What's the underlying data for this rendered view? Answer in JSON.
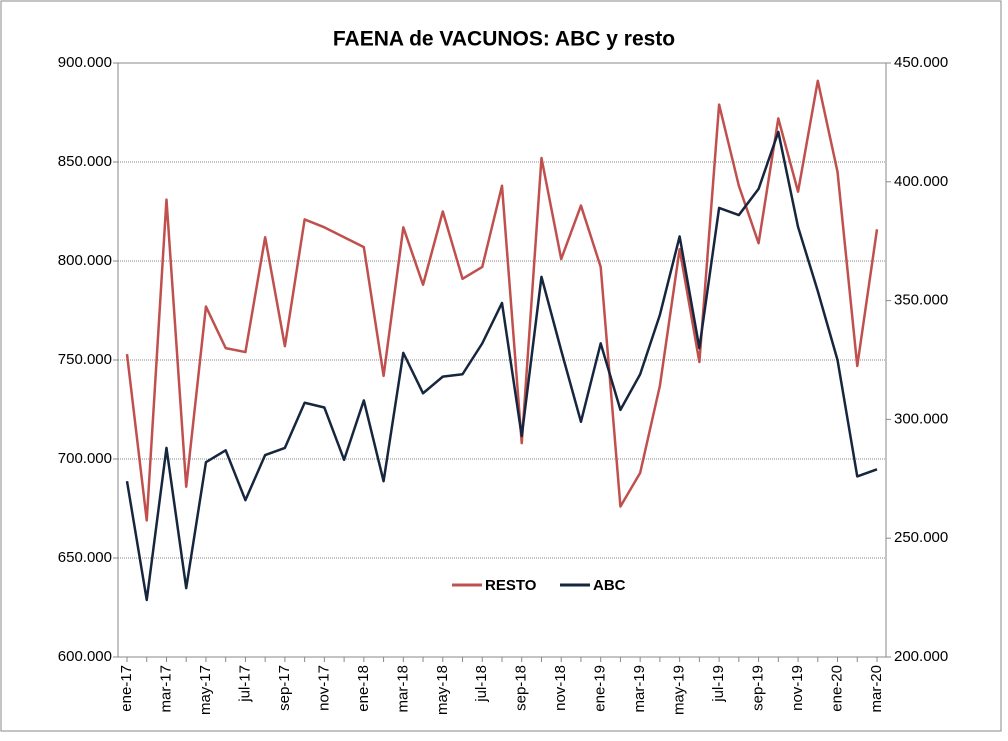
{
  "chart_data": {
    "type": "line",
    "title": "FAENA de VACUNOS: ABC y resto",
    "categories": [
      "ene-17",
      null,
      "mar-17",
      null,
      "may-17",
      null,
      "jul-17",
      null,
      "sep-17",
      null,
      "nov-17",
      null,
      "ene-18",
      null,
      "mar-18",
      null,
      "may-18",
      null,
      "jul-18",
      null,
      "sep-18",
      null,
      "nov-18",
      null,
      "ene-19",
      null,
      "mar-19",
      null,
      "may-19",
      null,
      "jul-19",
      null,
      "sep-19",
      null,
      "nov-19",
      null,
      "ene-20",
      null,
      "mar-20"
    ],
    "series": [
      {
        "name": "RESTO",
        "color": "#c0504d",
        "values": [
          753000,
          669000,
          831000,
          686000,
          777000,
          756000,
          754000,
          812000,
          757000,
          821000,
          817000,
          812000,
          807000,
          742000,
          817000,
          788000,
          825000,
          791000,
          797000,
          838000,
          708000,
          852000,
          801000,
          828000,
          797000,
          676000,
          693000,
          737000,
          806000,
          749000,
          879000,
          838000,
          809000,
          872000,
          835000,
          891000,
          845000,
          747000,
          816000
        ]
      },
      {
        "name": "ABC",
        "color": "#17263f",
        "axis": "y2",
        "values": [
          274000,
          224000,
          288000,
          229000,
          282000,
          287000,
          266000,
          285000,
          288000,
          307000,
          305000,
          283000,
          308000,
          274000,
          328000,
          311000,
          318000,
          319000,
          332000,
          349000,
          293000,
          360000,
          329000,
          299000,
          332000,
          304000,
          319000,
          344000,
          377000,
          330000,
          389000,
          386000,
          397000,
          421000,
          381000,
          354000,
          325000,
          276000,
          279000
        ]
      }
    ],
    "ylim": [
      600000,
      900000
    ],
    "yticks": [
      {
        "value": 600000,
        "label": "600.000"
      },
      {
        "value": 650000,
        "label": "650.000"
      },
      {
        "value": 700000,
        "label": "700.000"
      },
      {
        "value": 750000,
        "label": "750.000"
      },
      {
        "value": 800000,
        "label": "800.000"
      },
      {
        "value": 850000,
        "label": "850.000"
      },
      {
        "value": 900000,
        "label": "900.000"
      }
    ],
    "y2lim": [
      200000,
      450000
    ],
    "y2ticks": [
      {
        "value": 200000,
        "label": "200.000"
      },
      {
        "value": 250000,
        "label": "250.000"
      },
      {
        "value": 300000,
        "label": "300.000"
      },
      {
        "value": 350000,
        "label": "350.000"
      },
      {
        "value": 400000,
        "label": "400.000"
      },
      {
        "value": 450000,
        "label": "450.000"
      }
    ],
    "grid": true
  }
}
